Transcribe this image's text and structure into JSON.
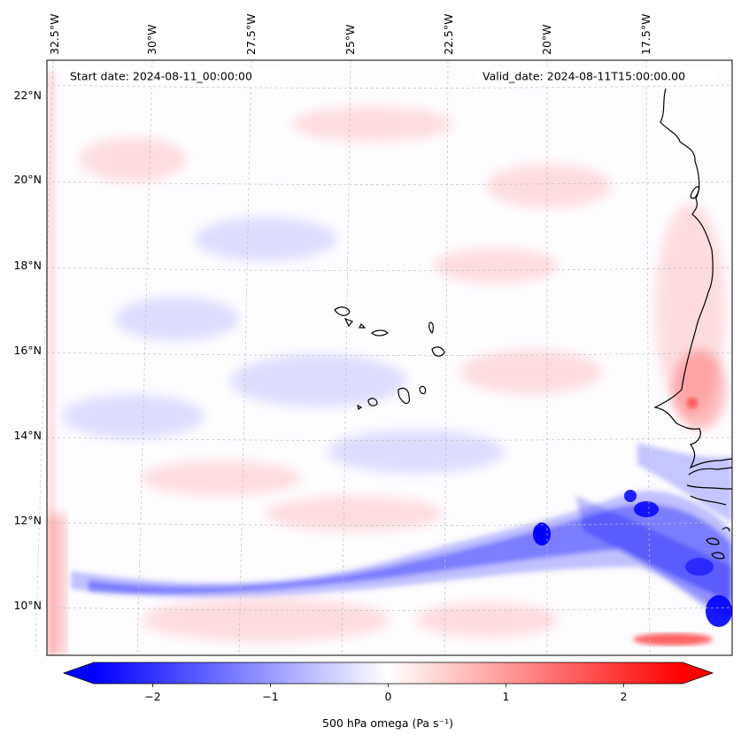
{
  "map": {
    "start_label": "Start date: 2024-08-11_00:00:00",
    "valid_label": "Valid_date: 2024-08-11T15:00:00.00",
    "lon_labels": [
      "32.5°W",
      "30°W",
      "27.5°W",
      "25°W",
      "22.5°W",
      "20°W",
      "17.5°W"
    ],
    "lat_labels": [
      "22°N",
      "20°N",
      "18°N",
      "16°N",
      "14°N",
      "12°N",
      "10°N"
    ],
    "variable": "500 hPa omega",
    "units": "Pa s⁻¹"
  },
  "colorbar": {
    "min": -2.5,
    "max": 2.5,
    "tick_values": [
      -2,
      -1,
      0,
      1,
      2
    ],
    "tick_labels": [
      "−2",
      "−1",
      "0",
      "1",
      "2"
    ],
    "label": "500 hPa omega (Pa s⁻¹)",
    "cmap": "bwr",
    "colors": {
      "neg": "#0000ff",
      "mid": "#ffffff",
      "pos": "#ff0000"
    }
  },
  "colors": {
    "coast": "#000000",
    "grid": "#bfbfbf"
  }
}
